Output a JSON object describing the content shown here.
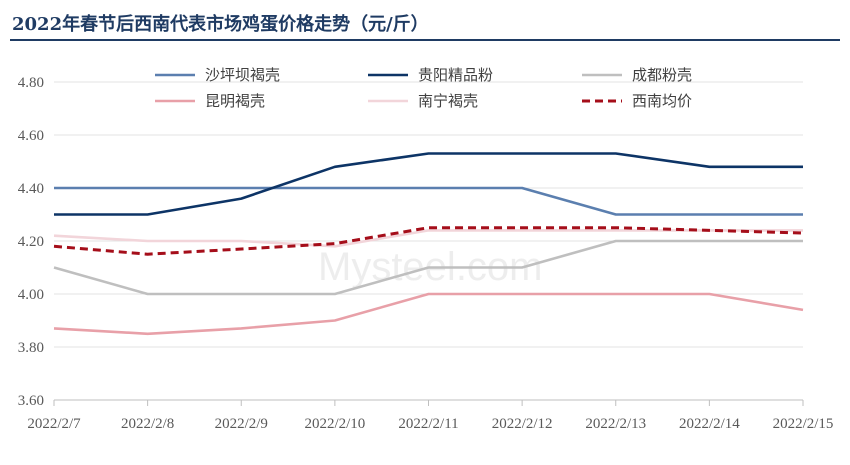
{
  "chart_data": {
    "type": "line",
    "title": "2022年春节后西南代表市场鸡蛋价格走势（元/斤）",
    "x": [
      "2022/2/7",
      "2022/2/8",
      "2022/2/9",
      "2022/2/10",
      "2022/2/11",
      "2022/2/12",
      "2022/2/13",
      "2022/2/14",
      "2022/2/15"
    ],
    "ylim": [
      3.6,
      4.8
    ],
    "yticks": [
      "3.60",
      "3.80",
      "4.00",
      "4.20",
      "4.40",
      "4.60",
      "4.80"
    ],
    "grid": true,
    "legend_position": "top",
    "series": [
      {
        "name": "沙坪坝褐壳",
        "color": "#5b7faf",
        "dashed": false,
        "values": [
          4.4,
          4.4,
          4.4,
          4.4,
          4.4,
          4.4,
          4.3,
          4.3,
          4.3
        ]
      },
      {
        "name": "贵阳精品粉",
        "color": "#0d3466",
        "dashed": false,
        "values": [
          4.3,
          4.3,
          4.36,
          4.48,
          4.53,
          4.53,
          4.53,
          4.48,
          4.48
        ]
      },
      {
        "name": "成都粉壳",
        "color": "#bfbfbf",
        "dashed": false,
        "values": [
          4.1,
          4.0,
          4.0,
          4.0,
          4.1,
          4.1,
          4.2,
          4.2,
          4.2
        ]
      },
      {
        "name": "昆明褐壳",
        "color": "#e8a0a8",
        "dashed": false,
        "values": [
          3.87,
          3.85,
          3.87,
          3.9,
          4.0,
          4.0,
          4.0,
          4.0,
          3.94
        ]
      },
      {
        "name": "南宁褐壳",
        "color": "#f2d5da",
        "dashed": false,
        "values": [
          4.22,
          4.2,
          4.2,
          4.18,
          4.24,
          4.24,
          4.24,
          4.24,
          4.24
        ]
      },
      {
        "name": "西南均价",
        "color": "#a50e1a",
        "dashed": true,
        "values": [
          4.18,
          4.15,
          4.17,
          4.19,
          4.25,
          4.25,
          4.25,
          4.24,
          4.23
        ]
      }
    ]
  },
  "watermark": {
    "text": "Mysteel.com"
  }
}
